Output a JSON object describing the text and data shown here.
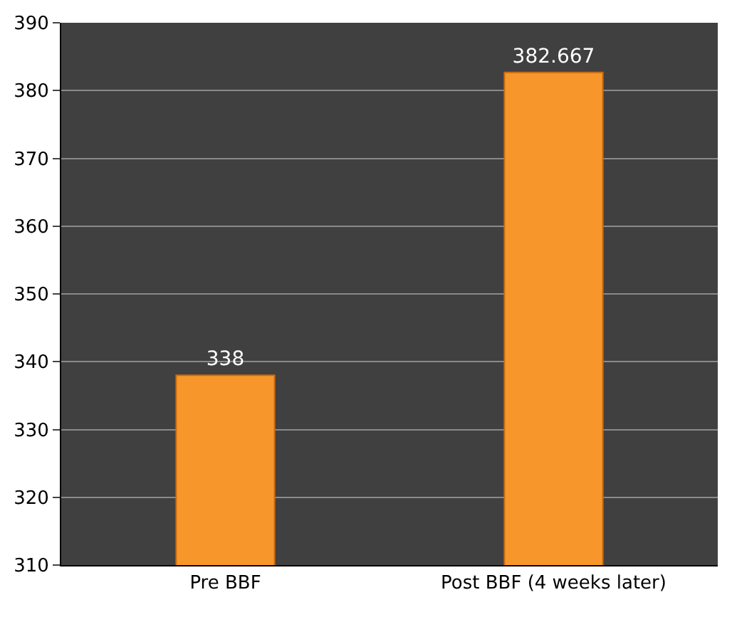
{
  "chart_data": {
    "type": "bar",
    "categories": [
      "Pre BBF",
      "Post BBF (4 weeks later)"
    ],
    "values": [
      338,
      382.667
    ],
    "color": "#f7962a",
    "ylim": [
      310,
      390
    ],
    "yticks": [
      310,
      320,
      330,
      340,
      350,
      360,
      370,
      380,
      390
    ],
    "grid": "y",
    "data_labels": true
  }
}
